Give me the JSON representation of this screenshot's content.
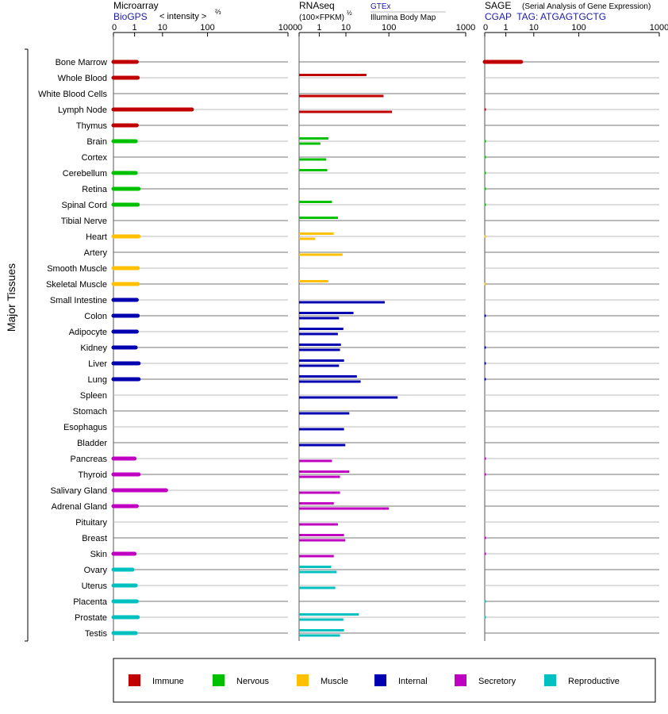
{
  "chart_data": {
    "type": "bar",
    "y_group_label": "Major Tissues",
    "colors": {
      "Immune": "#c00000",
      "Nervous": "#00c000",
      "Muscle": "#ffc000",
      "Internal": "#0000b0",
      "Secretory": "#c000c0",
      "Reproductive": "#00c0c0"
    },
    "legend": {
      "items": [
        "Immune",
        "Nervous",
        "Muscle",
        "Internal",
        "Secretory",
        "Reproductive"
      ],
      "placement": "bottom"
    },
    "tissues": [
      {
        "name": "Bone Marrow",
        "group": "Immune",
        "micro": 1.2,
        "rna1": null,
        "rna2": null,
        "sage": 3.5
      },
      {
        "name": "Whole Blood",
        "group": "Immune",
        "micro": 1.3,
        "rna1": 30,
        "rna2": null,
        "sage": null
      },
      {
        "name": "White Blood Cells",
        "group": "Immune",
        "micro": null,
        "rna1": null,
        "rna2": 75,
        "sage": null
      },
      {
        "name": "Lymph Node",
        "group": "Immune",
        "micro": 45,
        "rna1": null,
        "rna2": 110,
        "sage": 0
      },
      {
        "name": "Thymus",
        "group": "Immune",
        "micro": 1.2,
        "rna1": null,
        "rna2": null,
        "sage": null
      },
      {
        "name": "Brain",
        "group": "Nervous",
        "micro": 1.1,
        "rna1": 2.2,
        "rna2": 1.1,
        "sage": 0
      },
      {
        "name": "Cortex",
        "group": "Nervous",
        "micro": null,
        "rna1": null,
        "rna2": 1.8,
        "sage": 0
      },
      {
        "name": "Cerebellum",
        "group": "Nervous",
        "micro": 1.1,
        "rna1": 2.0,
        "rna2": null,
        "sage": 0
      },
      {
        "name": "Retina",
        "group": "Nervous",
        "micro": 1.4,
        "rna1": null,
        "rna2": null,
        "sage": 0
      },
      {
        "name": "Spinal Cord",
        "group": "Nervous",
        "micro": 1.3,
        "rna1": 3.0,
        "rna2": null,
        "sage": 0
      },
      {
        "name": "Tibial Nerve",
        "group": "Nervous",
        "micro": null,
        "rna1": 5.0,
        "rna2": null,
        "sage": null
      },
      {
        "name": "Heart",
        "group": "Muscle",
        "micro": 1.4,
        "rna1": 3.5,
        "rna2": 0.8,
        "sage": 0
      },
      {
        "name": "Artery",
        "group": "Muscle",
        "micro": null,
        "rna1": null,
        "rna2": 7.5,
        "sage": null
      },
      {
        "name": "Smooth Muscle",
        "group": "Muscle",
        "micro": 1.3,
        "rna1": null,
        "rna2": null,
        "sage": null
      },
      {
        "name": "Skeletal Muscle",
        "group": "Muscle",
        "micro": 1.3,
        "rna1": 2.2,
        "rna2": 0.01,
        "sage": 0
      },
      {
        "name": "Small Intestine",
        "group": "Internal",
        "micro": 1.2,
        "rna1": null,
        "rna2": 80,
        "sage": null
      },
      {
        "name": "Colon",
        "group": "Internal",
        "micro": 1.3,
        "rna1": 15,
        "rna2": 5.5,
        "sage": 0
      },
      {
        "name": "Adipocyte",
        "group": "Internal",
        "micro": 1.2,
        "rna1": 8,
        "rna2": 5,
        "sage": null
      },
      {
        "name": "Kidney",
        "group": "Internal",
        "micro": 1.1,
        "rna1": 6.5,
        "rna2": 6,
        "sage": 0
      },
      {
        "name": "Liver",
        "group": "Internal",
        "micro": 1.4,
        "rna1": 8.5,
        "rna2": 5.5,
        "sage": 0
      },
      {
        "name": "Lung",
        "group": "Internal",
        "micro": 1.4,
        "rna1": 18,
        "rna2": 22,
        "sage": 0
      },
      {
        "name": "Spleen",
        "group": "Internal",
        "micro": null,
        "rna1": null,
        "rna2": 130,
        "sage": null
      },
      {
        "name": "Stomach",
        "group": "Internal",
        "micro": null,
        "rna1": null,
        "rna2": 12,
        "sage": null
      },
      {
        "name": "Esophagus",
        "group": "Internal",
        "micro": null,
        "rna1": null,
        "rna2": 8.5,
        "sage": null
      },
      {
        "name": "Bladder",
        "group": "Internal",
        "micro": null,
        "rna1": null,
        "rna2": 9.5,
        "sage": null
      },
      {
        "name": "Pancreas",
        "group": "Secretory",
        "micro": 1.0,
        "rna1": null,
        "rna2": 3.0,
        "sage": 0
      },
      {
        "name": "Thyroid",
        "group": "Secretory",
        "micro": 1.4,
        "rna1": 12,
        "rna2": 6,
        "sage": 0
      },
      {
        "name": "Salivary Gland",
        "group": "Secretory",
        "micro": 12,
        "rna1": null,
        "rna2": 6,
        "sage": null
      },
      {
        "name": "Adrenal Gland",
        "group": "Secretory",
        "micro": 1.2,
        "rna1": 3.5,
        "rna2": 100,
        "sage": null
      },
      {
        "name": "Pituitary",
        "group": "Secretory",
        "micro": null,
        "rna1": null,
        "rna2": 5.0,
        "sage": null
      },
      {
        "name": "Breast",
        "group": "Secretory",
        "micro": null,
        "rna1": 8.5,
        "rna2": 9.5,
        "sage": 0
      },
      {
        "name": "Skin",
        "group": "Secretory",
        "micro": 1.0,
        "rna1": null,
        "rna2": 3.5,
        "sage": 0
      },
      {
        "name": "Ovary",
        "group": "Reproductive",
        "micro": 0.9,
        "rna1": 2.8,
        "rna2": 4.5,
        "sage": null
      },
      {
        "name": "Uterus",
        "group": "Reproductive",
        "micro": 1.1,
        "rna1": null,
        "rna2": 4.0,
        "sage": null
      },
      {
        "name": "Placenta",
        "group": "Reproductive",
        "micro": 1.2,
        "rna1": null,
        "rna2": null,
        "sage": 0
      },
      {
        "name": "Prostate",
        "group": "Reproductive",
        "micro": 1.3,
        "rna1": 20,
        "rna2": 8,
        "sage": 0
      },
      {
        "name": "Testis",
        "group": "Reproductive",
        "micro": 1.1,
        "rna1": 8.5,
        "rna2": 6.0,
        "sage": null
      }
    ],
    "panels": [
      {
        "key": "micro",
        "title": "Microarray",
        "subtitle": "BioGPS",
        "note": "< intensity >",
        "note_exp": "⅔",
        "ticks": [
          "0",
          "1",
          "10",
          "100",
          "1000"
        ],
        "xlim": [
          0,
          1000
        ]
      },
      {
        "key": "rna",
        "title": "RNAseq",
        "note": "(100×FPKM)",
        "note_exp": "½",
        "source1": "GTEx",
        "source2": "Illumina Body Map",
        "ticks": [
          "0",
          "1",
          "10",
          "100",
          "1000"
        ],
        "xlim": [
          0,
          1000
        ]
      },
      {
        "key": "sage",
        "title": "SAGE",
        "title_note": "(Serial Analysis of Gene Expression)",
        "subtitle": "CGAP  TAG: ATGAGTGCTG",
        "ticks": [
          "0",
          "1",
          "10",
          "100",
          "1000"
        ],
        "xlim": [
          0,
          1000
        ]
      }
    ]
  }
}
